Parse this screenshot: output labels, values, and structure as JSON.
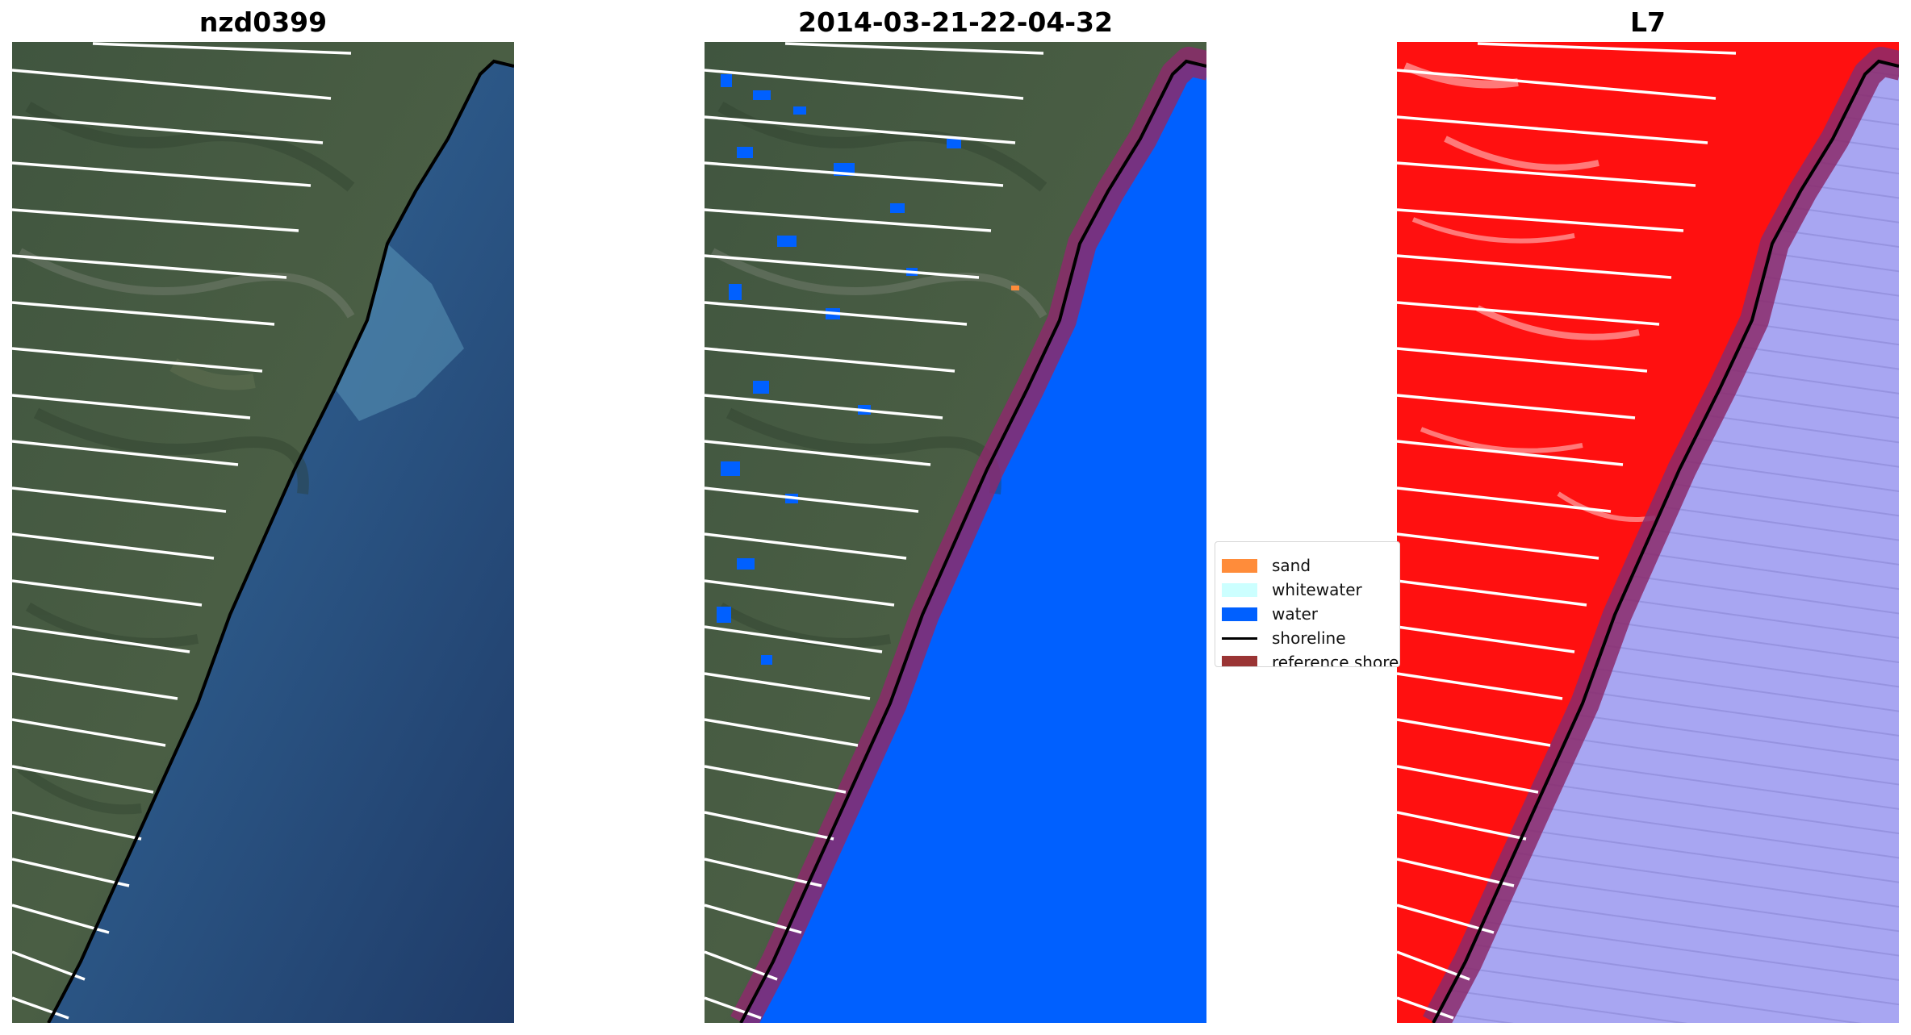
{
  "panels": [
    {
      "title": "nzd0399"
    },
    {
      "title": "2014-03-21-22-04-32"
    },
    {
      "title": "L7"
    }
  ],
  "legend": {
    "items": [
      {
        "label": "sand",
        "color": "#ff8c3a",
        "kind": "patch"
      },
      {
        "label": "whitewater",
        "color": "#ccffff",
        "kind": "patch"
      },
      {
        "label": "water",
        "color": "#0060ff",
        "kind": "patch"
      },
      {
        "label": "shoreline",
        "color": "#000000",
        "kind": "line"
      },
      {
        "label": "reference shoreline buffer",
        "color": "#9a3434",
        "kind": "patch"
      }
    ]
  },
  "colors": {
    "land_rgb": "#3f5540",
    "sea_rgb": "#2a4c78",
    "water_class": "#0060ff",
    "buffer": "#8b2a6b",
    "land_index": "#ff1010",
    "water_index": "#a8a6f2",
    "shoreline": "#000000",
    "scan_gaps": "#ffffff"
  }
}
